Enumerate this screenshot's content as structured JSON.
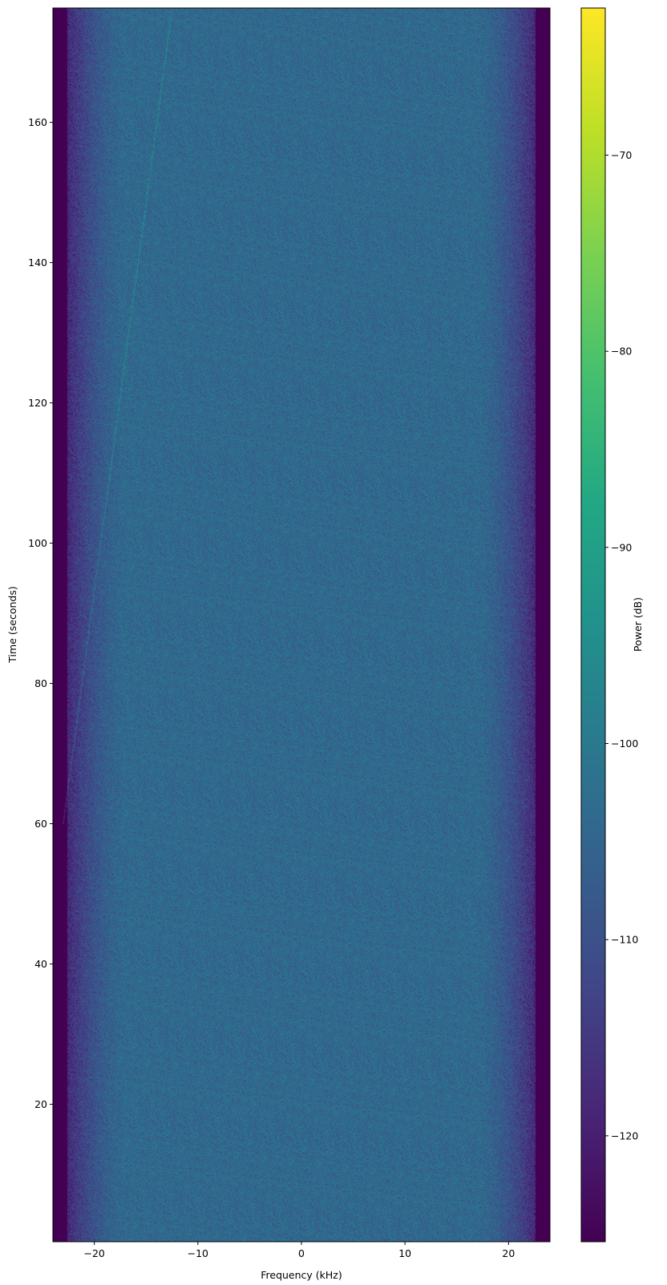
{
  "chart_data": {
    "type": "heatmap",
    "subtype": "spectrogram",
    "title": "",
    "xlabel": "Frequency (kHz)",
    "ylabel": "Time (seconds)",
    "xlim": [
      -24,
      24
    ],
    "ylim": [
      0.4,
      176.3
    ],
    "xticks": [
      -20,
      -10,
      0,
      10,
      20
    ],
    "xtick_labels": [
      "−20",
      "−10",
      "0",
      "10",
      "20"
    ],
    "yticks": [
      20,
      40,
      60,
      80,
      100,
      120,
      140,
      160
    ],
    "ytick_labels": [
      "20",
      "40",
      "60",
      "80",
      "100",
      "120",
      "140",
      "160"
    ],
    "grid": false,
    "colormap": "viridis",
    "colorbar": {
      "label": "Power (dB)",
      "range": [
        -125.4,
        -62.5
      ],
      "ticks": [
        -70,
        -80,
        -90,
        -100,
        -110,
        -120
      ],
      "tick_labels": [
        "−70",
        "−80",
        "−90",
        "−100",
        "−110",
        "−120"
      ]
    },
    "description_values": {
      "passband_level_db": -104,
      "out_of_band_level_db": -125,
      "passband_edge_khz": [
        -22.5,
        22.5
      ],
      "faint_chirp_track": {
        "start": {
          "freq_khz": -23,
          "time_s": 60
        },
        "end": {
          "freq_khz": -12.5,
          "time_s": 176
        }
      }
    }
  }
}
